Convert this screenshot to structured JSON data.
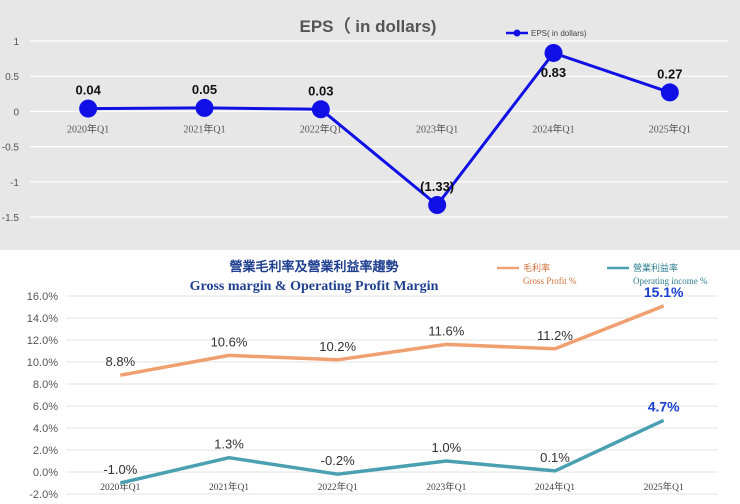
{
  "chart_data": [
    {
      "type": "line",
      "title": "EPS（ in dollars)",
      "categories": [
        "2020年Q1",
        "2021年Q1",
        "2022年Q1",
        "2023年Q1",
        "2024年Q1",
        "2025年Q1"
      ],
      "y_ticks": [
        "1",
        "0.5",
        "0",
        "-0.5",
        "-1",
        "-1.5"
      ],
      "y_tick_values": [
        1,
        0.5,
        0,
        -0.5,
        -1,
        -1.5
      ],
      "ylim": [
        -1.5,
        1
      ],
      "grid": true,
      "legend_position": "top-right",
      "series": [
        {
          "name": "EPS( in dollars)",
          "color": "#1010e6",
          "values": [
            0.04,
            0.05,
            0.03,
            -1.33,
            0.83,
            0.27
          ],
          "labels": [
            "0.04",
            "0.05",
            "0.03",
            "(1.33)",
            "0.83",
            "0.27"
          ]
        }
      ]
    },
    {
      "type": "line",
      "title": "營業毛利率及營業利益率趨勢",
      "subtitle": "Gross margin & Operating Profit Margin",
      "categories": [
        "2020年Q1",
        "2021年Q1",
        "2022年Q1",
        "2023年Q1",
        "2024年Q1",
        "2025年Q1"
      ],
      "y_ticks": [
        "16.0%",
        "14.0%",
        "12.0%",
        "10.0%",
        "8.0%",
        "6.0%",
        "4.0%",
        "2.0%",
        "0.0%",
        "-2.0%"
      ],
      "y_tick_values": [
        16,
        14,
        12,
        10,
        8,
        6,
        4,
        2,
        0,
        -2
      ],
      "ylim": [
        -2,
        16
      ],
      "grid": true,
      "legend_position": "top-right",
      "series": [
        {
          "name": "毛利率",
          "name_en": "Gross Profit %",
          "color": "#f0a070",
          "values": [
            8.8,
            10.6,
            10.2,
            11.6,
            11.2,
            15.1
          ],
          "labels": [
            "8.8%",
            "10.6%",
            "10.2%",
            "11.6%",
            "11.2%",
            "15.1%"
          ]
        },
        {
          "name": "營業利益率",
          "name_en": "Operating income %",
          "color": "#4aa0b0",
          "values": [
            -1.0,
            1.3,
            -0.2,
            1.0,
            0.1,
            4.7
          ],
          "labels": [
            "-1.0%",
            "1.3%",
            "-0.2%",
            "1.0%",
            "0.1%",
            "4.7%"
          ]
        }
      ]
    }
  ]
}
